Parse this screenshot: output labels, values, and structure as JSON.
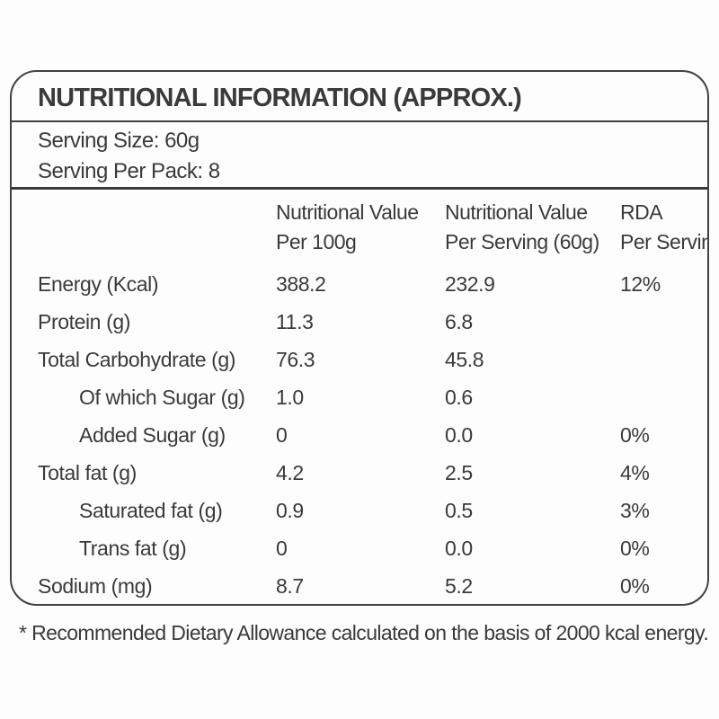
{
  "title": "NUTRITIONAL INFORMATION (APPROX.)",
  "serving": {
    "size": "Serving Size: 60g",
    "per_pack": "Serving Per Pack: 8"
  },
  "table": {
    "columns": [
      {
        "line1": "Nutritional Value",
        "line2": "Per 100g"
      },
      {
        "line1": "Nutritional Value",
        "line2": "Per Serving (60g)"
      },
      {
        "line1": "RDA",
        "line2": "Per Serving*"
      }
    ],
    "rows": [
      {
        "label": "Energy (Kcal)",
        "indent": false,
        "per_100g": "388.2",
        "per_serving": "232.9",
        "rda": "12%"
      },
      {
        "label": "Protein (g)",
        "indent": false,
        "per_100g": "11.3",
        "per_serving": "6.8",
        "rda": ""
      },
      {
        "label": "Total Carbohydrate (g)",
        "indent": false,
        "per_100g": "76.3",
        "per_serving": "45.8",
        "rda": ""
      },
      {
        "label": "Of which Sugar (g)",
        "indent": true,
        "per_100g": "1.0",
        "per_serving": "0.6",
        "rda": ""
      },
      {
        "label": "Added Sugar (g)",
        "indent": true,
        "per_100g": "0",
        "per_serving": "0.0",
        "rda": "0%"
      },
      {
        "label": "Total fat (g)",
        "indent": false,
        "per_100g": "4.2",
        "per_serving": "2.5",
        "rda": "4%"
      },
      {
        "label": "Saturated fat (g)",
        "indent": true,
        "per_100g": "0.9",
        "per_serving": "0.5",
        "rda": "3%"
      },
      {
        "label": "Trans fat (g)",
        "indent": true,
        "per_100g": "0",
        "per_serving": "0.0",
        "rda": "0%"
      },
      {
        "label": "Sodium (mg)",
        "indent": false,
        "per_100g": "8.7",
        "per_serving": "5.2",
        "rda": "0%"
      }
    ]
  },
  "footnote": "* Recommended Dietary Allowance calculated on the basis of 2000 kcal energy.",
  "colors": {
    "text": "#3a3a3c",
    "border": "#414143",
    "background": "#fdfdfd"
  }
}
